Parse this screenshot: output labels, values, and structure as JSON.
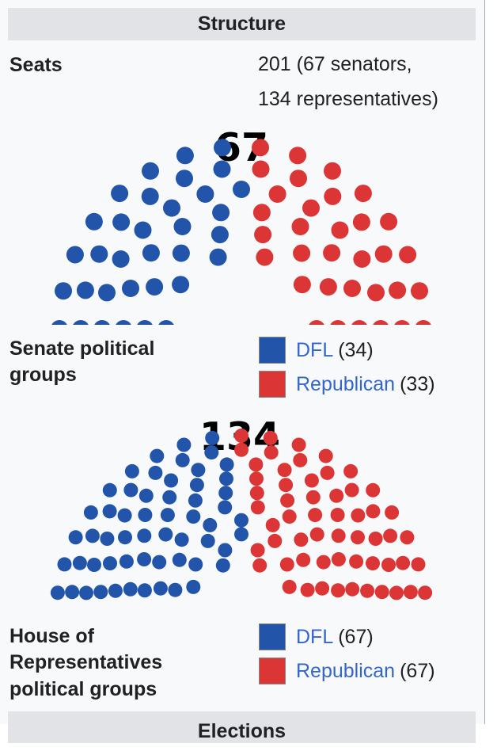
{
  "structure": {
    "heading": "Structure"
  },
  "seats": {
    "label": "Seats",
    "line1": "201 (67 senators,",
    "line2": "134 representatives)"
  },
  "senate": {
    "total": "67",
    "label_line1": "Senate political",
    "label_line2": "groups",
    "parties": [
      {
        "name": "DFL",
        "count": "(34)",
        "seats": 34,
        "color": "#2255aa"
      },
      {
        "name": "Republican",
        "count": "(33)",
        "seats": 33,
        "color": "#dc3535"
      }
    ]
  },
  "house": {
    "total": "134",
    "label_line1": "House of",
    "label_line2": "Representatives",
    "label_line3": "political groups",
    "parties": [
      {
        "name": "DFL",
        "count": "(67)",
        "seats": 67,
        "color": "#2255aa"
      },
      {
        "name": "Republican",
        "count": "(67)",
        "seats": 67,
        "color": "#dc3535"
      }
    ]
  },
  "elections": {
    "heading": "Elections"
  }
}
